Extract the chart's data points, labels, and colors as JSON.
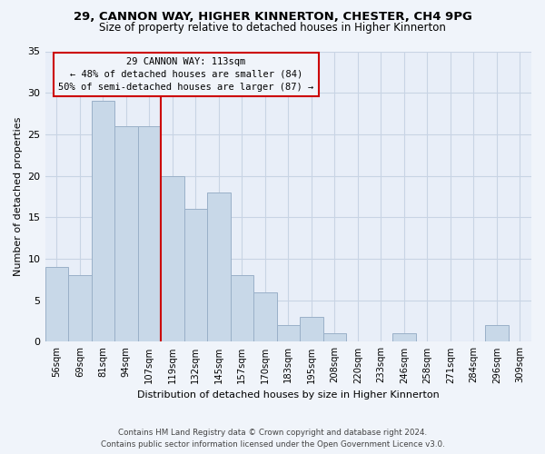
{
  "title": "29, CANNON WAY, HIGHER KINNERTON, CHESTER, CH4 9PG",
  "subtitle": "Size of property relative to detached houses in Higher Kinnerton",
  "bar_labels": [
    "56sqm",
    "69sqm",
    "81sqm",
    "94sqm",
    "107sqm",
    "119sqm",
    "132sqm",
    "145sqm",
    "157sqm",
    "170sqm",
    "183sqm",
    "195sqm",
    "208sqm",
    "220sqm",
    "233sqm",
    "246sqm",
    "258sqm",
    "271sqm",
    "284sqm",
    "296sqm",
    "309sqm"
  ],
  "bar_values": [
    9,
    8,
    29,
    26,
    26,
    20,
    16,
    18,
    8,
    6,
    2,
    3,
    1,
    0,
    0,
    1,
    0,
    0,
    0,
    2,
    0
  ],
  "bar_color": "#c8d8e8",
  "bar_edge_color": "#9ab0c8",
  "ylabel": "Number of detached properties",
  "xlabel": "Distribution of detached houses by size in Higher Kinnerton",
  "ylim": [
    0,
    35
  ],
  "yticks": [
    0,
    5,
    10,
    15,
    20,
    25,
    30,
    35
  ],
  "marker_label": "29 CANNON WAY: 113sqm",
  "annotation_line1": "← 48% of detached houses are smaller (84)",
  "annotation_line2": "50% of semi-detached houses are larger (87) →",
  "marker_color": "#cc0000",
  "annotation_box_edge": "#cc0000",
  "footer_line1": "Contains HM Land Registry data © Crown copyright and database right 2024.",
  "footer_line2": "Contains public sector information licensed under the Open Government Licence v3.0.",
  "bg_color": "#f0f4fa",
  "plot_bg_color": "#e8eef8",
  "grid_color": "#c8d4e4",
  "title_fontsize": 9.5,
  "subtitle_fontsize": 8.5
}
